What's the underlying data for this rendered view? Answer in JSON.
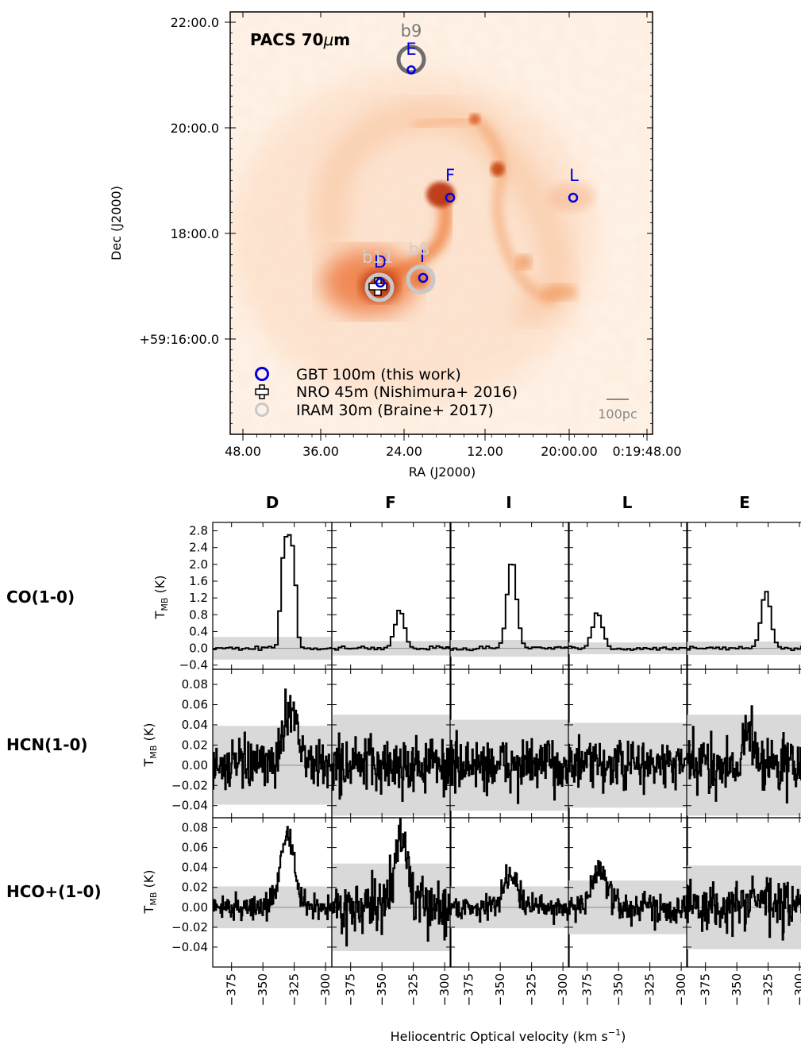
{
  "chart_data": [
    {
      "type": "scatter",
      "panel": "PACS 70um map with pointings",
      "title": "PACS 70μm",
      "xlabel": "RA (J2000)",
      "ylabel": "Dec (J2000)",
      "x_tick_labels": [
        "48.00",
        "36.00",
        "24.00",
        "12.00",
        "20:00.00",
        "0:19:48.00"
      ],
      "y_tick_labels": [
        "22:00.0",
        "20:00.0",
        "18:00.0",
        "+59:16:00.0"
      ],
      "scale_bar": "100pc",
      "legend": [
        {
          "label": "GBT 100m (this work)",
          "marker": "blue-circle"
        },
        {
          "label": "NRO 45m (Nishimura+ 2016)",
          "marker": "plus"
        },
        {
          "label": "IRAM 30m (Braine+ 2017)",
          "marker": "grey-circle"
        }
      ],
      "gbt_points": [
        "E",
        "F",
        "L",
        "I",
        "D"
      ],
      "iram_points": [
        "b9",
        "b11",
        "b8"
      ],
      "colors": {
        "gbt": "#0000dd",
        "iram": "#c0c0c0",
        "iram_b9": "#6e6e6e",
        "nro": "#000000",
        "map": "#e8590c"
      }
    },
    {
      "type": "line",
      "panel": "Spectra grid",
      "columns": [
        "D",
        "F",
        "I",
        "L",
        "E"
      ],
      "rows": [
        {
          "name": "CO(1-0)",
          "ylim": [
            -0.5,
            3.0
          ],
          "yticks": [
            "2.8",
            "2.4",
            "2.0",
            "1.6",
            "1.2",
            "0.8",
            "0.4",
            "0.0",
            "−0.4"
          ],
          "peaks": [
            2.75,
            0.92,
            2.1,
            0.85,
            1.38
          ],
          "peak_v": [
            -331,
            -337,
            -342,
            -368,
            -328
          ],
          "noise_band": [
            0.27,
            0.17,
            0.2,
            0.14,
            0.16
          ]
        },
        {
          "name": "HCN(1-0)",
          "ylim": [
            -0.052,
            0.095
          ],
          "yticks": [
            "0.08",
            "0.06",
            "0.04",
            "0.02",
            "0.00",
            "−0.02",
            "−0.04"
          ],
          "peaks": [
            0.06,
            0.0,
            0.0,
            0.0,
            0.03
          ],
          "peak_v": [
            -328,
            -340,
            -340,
            -340,
            -340
          ],
          "noise_band": [
            0.039,
            0.05,
            0.045,
            0.042,
            0.05
          ]
        },
        {
          "name": "HCO+(1-0)",
          "ylim": [
            -0.06,
            0.09
          ],
          "yticks": [
            "0.08",
            "0.06",
            "0.04",
            "0.02",
            "0.00",
            "−0.02",
            "−0.04"
          ],
          "peaks": [
            0.074,
            0.07,
            0.035,
            0.04,
            0.01
          ],
          "peak_v": [
            -331,
            -335,
            -342,
            -365,
            -335
          ],
          "noise_band": [
            0.021,
            0.044,
            0.021,
            0.027,
            0.042
          ]
        }
      ],
      "ylabel": "T_MB (K)",
      "xlabel": "Heliocentric Optical velocity (km s⁻¹)",
      "xlim": [
        -390,
        -295
      ],
      "xticks": [
        "−375",
        "−350",
        "−325",
        "−300"
      ],
      "colors": {
        "line": "#000000",
        "band": "#d9d9d9",
        "zero": "#8c8c8c"
      }
    }
  ]
}
